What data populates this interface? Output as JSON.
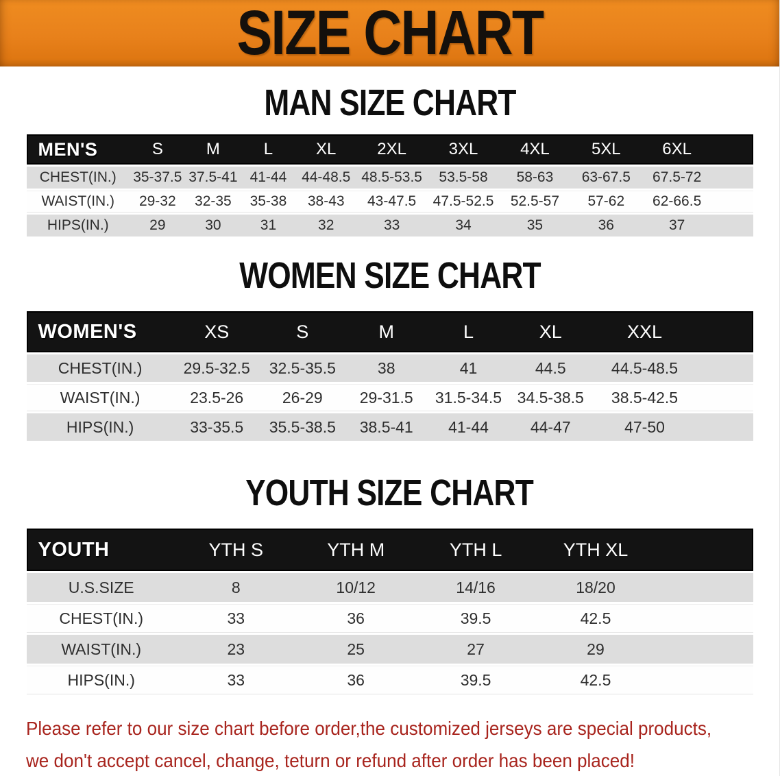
{
  "banner": {
    "title": "SIZE CHART"
  },
  "sections": {
    "men": {
      "title": "MAN SIZE CHART"
    },
    "women": {
      "title": "WOMEN SIZE CHART"
    },
    "youth": {
      "title": "YOUTH SIZE CHART"
    }
  },
  "tables": {
    "men": {
      "corner": "MEN'S",
      "columns": [
        "S",
        "M",
        "L",
        "XL",
        "2XL",
        "3XL",
        "4XL",
        "5XL",
        "6XL"
      ],
      "rows": [
        {
          "label": "CHEST(IN.)",
          "values": [
            "35-37.5",
            "37.5-41",
            "41-44",
            "44-48.5",
            "48.5-53.5",
            "53.5-58",
            "58-63",
            "63-67.5",
            "67.5-72"
          ]
        },
        {
          "label": "WAIST(IN.)",
          "values": [
            "29-32",
            "32-35",
            "35-38",
            "38-43",
            "43-47.5",
            "47.5-52.5",
            "52.5-57",
            "57-62",
            "62-66.5"
          ]
        },
        {
          "label": "HIPS(IN.)",
          "values": [
            "29",
            "30",
            "31",
            "32",
            "33",
            "34",
            "35",
            "36",
            "37"
          ]
        }
      ]
    },
    "women": {
      "corner": "WOMEN'S",
      "columns": [
        "XS",
        "S",
        "M",
        "L",
        "XL",
        "XXL"
      ],
      "rows": [
        {
          "label": "CHEST(IN.)",
          "values": [
            "29.5-32.5",
            "32.5-35.5",
            "38",
            "41",
            "44.5",
            "44.5-48.5"
          ]
        },
        {
          "label": "WAIST(IN.)",
          "values": [
            "23.5-26",
            "26-29",
            "29-31.5",
            "31.5-34.5",
            "34.5-38.5",
            "38.5-42.5"
          ]
        },
        {
          "label": "HIPS(IN.)",
          "values": [
            "33-35.5",
            "35.5-38.5",
            "38.5-41",
            "41-44",
            "44-47",
            "47-50"
          ]
        }
      ]
    },
    "youth": {
      "corner": "YOUTH",
      "columns": [
        "YTH S",
        "YTH M",
        "YTH L",
        "YTH XL"
      ],
      "rows": [
        {
          "label": "U.S.SIZE",
          "values": [
            "8",
            "10/12",
            "14/16",
            "18/20"
          ]
        },
        {
          "label": "CHEST(IN.)",
          "values": [
            "33",
            "36",
            "39.5",
            "42.5"
          ]
        },
        {
          "label": "WAIST(IN.)",
          "values": [
            "23",
            "25",
            "27",
            "29"
          ]
        },
        {
          "label": "HIPS(IN.)",
          "values": [
            "33",
            "36",
            "39.5",
            "42.5"
          ]
        }
      ]
    }
  },
  "disclaimer": {
    "line1": "Please refer to our size chart before order,the customized jerseys are special products,",
    "line2": "we don't accept cancel, change, teturn or refund after order has been placed!"
  },
  "colors": {
    "banner_orange": "#E8811B",
    "header_bar_black": "#131313",
    "row_gray": "#DDDDDD",
    "note_red": "#A8241D"
  }
}
